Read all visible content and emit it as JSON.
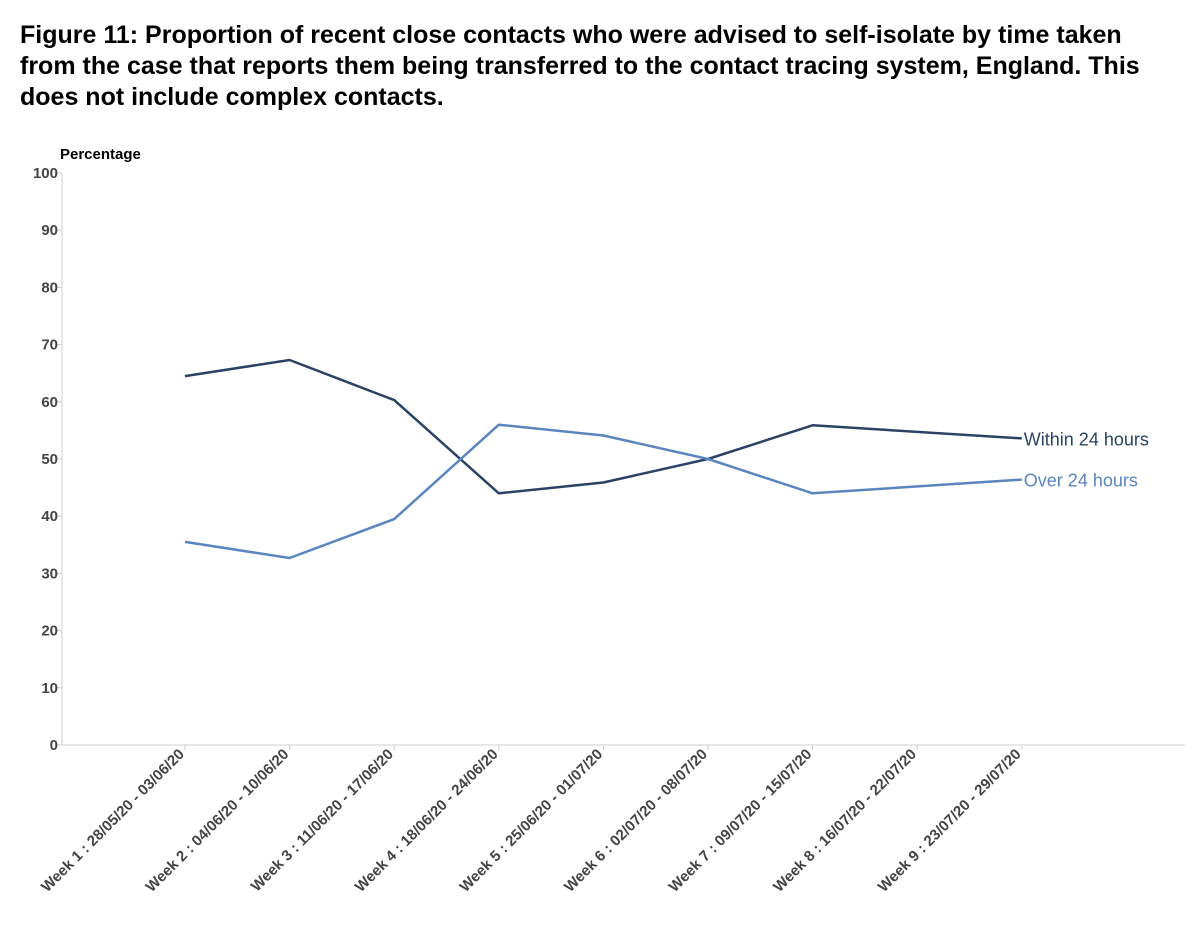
{
  "chart_data": {
    "type": "line",
    "title": "Figure 11: Proportion of recent close contacts who were advised to self-isolate by time taken from the case that reports them being transferred to the contact tracing system, England. This does not include complex contacts.",
    "ylabel": "Percentage",
    "xlabel": "",
    "ylim": [
      0,
      100
    ],
    "yticks": [
      0,
      10,
      20,
      30,
      40,
      50,
      60,
      70,
      80,
      90,
      100
    ],
    "grid": false,
    "legend": "inline labels at line ends",
    "categories": [
      "Week 1 : 28/05/20 - 03/06/20",
      "Week 2 : 04/06/20 - 10/06/20",
      "Week 3 : 11/06/20 - 17/06/20",
      "Week 4 : 18/06/20 - 24/06/20",
      "Week 5 : 25/06/20 - 01/07/20",
      "Week 6 : 02/07/20 - 08/07/20",
      "Week 7 : 09/07/20 - 15/07/20",
      "Week 8 : 16/07/20 - 22/07/20",
      "Week 9 : 23/07/20 - 29/07/20"
    ],
    "series": [
      {
        "name": "Within 24 hours",
        "color": "#2a4365",
        "values": [
          64.5,
          67.3,
          60.3,
          44.0,
          45.9,
          50.0,
          55.9,
          null,
          53.6
        ]
      },
      {
        "name": "Over 24 hours",
        "color": "#5b85be",
        "values": [
          35.5,
          32.7,
          39.5,
          56.0,
          54.1,
          50.0,
          44.0,
          null,
          46.4
        ]
      }
    ]
  }
}
